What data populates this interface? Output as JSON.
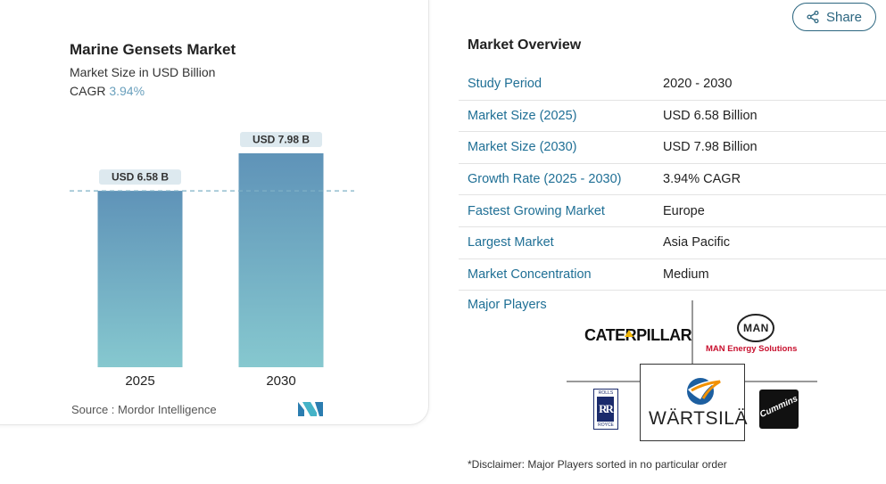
{
  "chart_card": {
    "title": "Marine Gensets Market",
    "subtitle": "Market Size in USD Billion",
    "cagr_label": "CAGR",
    "cagr_value": "3.94%",
    "source": "Source :  Mordor Intelligence"
  },
  "chart_data": {
    "type": "bar",
    "categories": [
      "2025",
      "2030"
    ],
    "values": [
      6.58,
      7.98
    ],
    "data_labels": [
      "USD 6.58 B",
      "USD 7.98 B"
    ],
    "title": "Marine Gensets Market",
    "subtitle": "Market Size in USD Billion",
    "reference_line": "dashed line at 2025 value",
    "colors": {
      "bar_top": "#5f93b8",
      "bar_bottom": "#86c8cf",
      "label_bg": "#dde9ef",
      "dash": "#7fb0c6"
    }
  },
  "share_button": {
    "label": "Share",
    "icon": "share-icon"
  },
  "overview": {
    "title": "Market Overview",
    "rows": [
      {
        "key": "Study Period",
        "value": "2020 - 2030"
      },
      {
        "key": "Market Size (2025)",
        "value": "USD 6.58 Billion"
      },
      {
        "key": "Market Size (2030)",
        "value": "USD 7.98 Billion"
      },
      {
        "key": "Growth Rate (2025 - 2030)",
        "value": "3.94% CAGR"
      },
      {
        "key": "Fastest Growing Market",
        "value": "Europe"
      },
      {
        "key": "Largest Market",
        "value": "Asia Pacific"
      },
      {
        "key": "Market Concentration",
        "value": "Medium"
      }
    ],
    "major_players_label": "Major Players",
    "players": {
      "caterpillar": "CATERPILLAR",
      "man_mark": "MAN",
      "man_text": "MAN Energy Solutions",
      "rolls_top": "ROLLS",
      "rolls_mark": "RR",
      "rolls_bottom": "ROYCE",
      "wartsila": "WÄRTSILÄ",
      "cummins": "Cummins"
    },
    "disclaimer": "*Disclaimer: Major Players sorted in no particular order"
  },
  "colors": {
    "accent": "#1f6f95",
    "share": "#2c6680"
  }
}
